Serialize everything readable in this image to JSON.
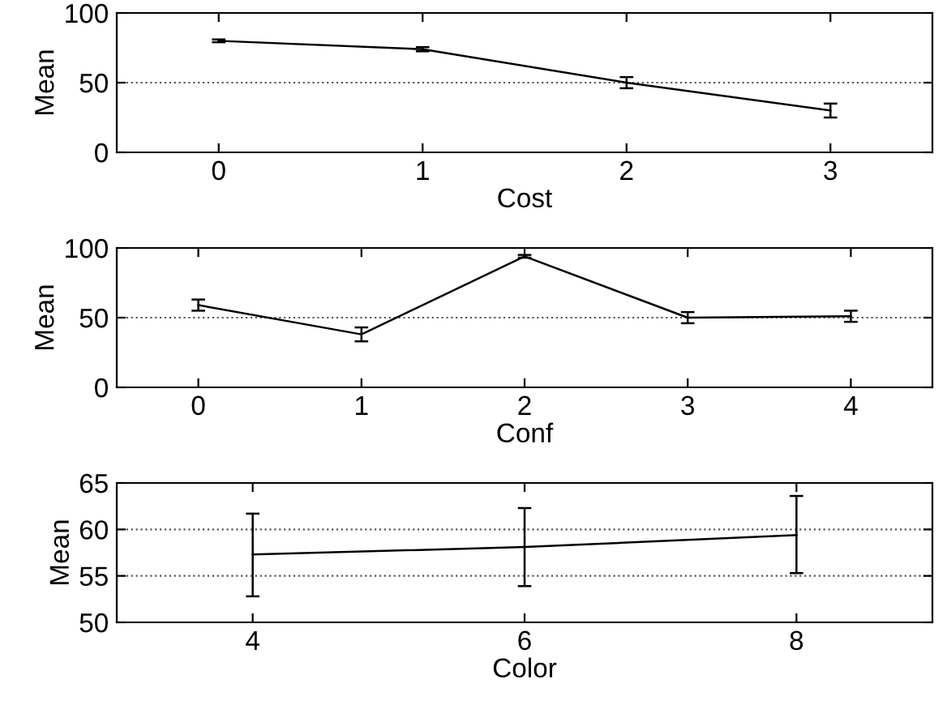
{
  "chart_data": [
    {
      "type": "line",
      "xlabel": "Cost",
      "ylabel": "Mean",
      "x": [
        0,
        1,
        2,
        3
      ],
      "series": [
        {
          "color": "#000000",
          "values": [
            80,
            74,
            50,
            30
          ],
          "errors": [
            1,
            1.5,
            4,
            5
          ]
        }
      ],
      "xlim": [
        -0.5,
        3.5
      ],
      "ylim": [
        0,
        100
      ],
      "xticks": [
        0,
        1,
        2,
        3
      ],
      "yticks": [
        0,
        50,
        100
      ],
      "grid": "y",
      "marker": "none",
      "line_style": "solid"
    },
    {
      "type": "line",
      "xlabel": "Conf",
      "ylabel": "Mean",
      "x": [
        0,
        1,
        2,
        3,
        4
      ],
      "series": [
        {
          "color": "#000000",
          "values": [
            59,
            38,
            94,
            50,
            51
          ],
          "errors": [
            4,
            5,
            1,
            4,
            4
          ]
        }
      ],
      "xlim": [
        -0.5,
        4.5
      ],
      "ylim": [
        0,
        100
      ],
      "xticks": [
        0,
        1,
        2,
        3,
        4
      ],
      "yticks": [
        0,
        50,
        100
      ],
      "grid": "y",
      "marker": "none",
      "line_style": "solid"
    },
    {
      "type": "line",
      "xlabel": "Color",
      "ylabel": "Mean",
      "x": [
        4,
        6,
        8
      ],
      "series": [
        {
          "color": "#000000",
          "values": [
            57.3,
            58.1,
            59.4
          ],
          "errors": [
            [
              52.8,
              61.7
            ],
            [
              53.9,
              62.3
            ],
            [
              55.3,
              63.6
            ]
          ]
        }
      ],
      "xlim": [
        3,
        9
      ],
      "ylim": [
        50,
        65
      ],
      "xticks": [
        4,
        6,
        8
      ],
      "yticks": [
        50,
        55,
        60,
        65
      ],
      "grid": "y",
      "marker": "none",
      "line_style": "solid"
    }
  ]
}
